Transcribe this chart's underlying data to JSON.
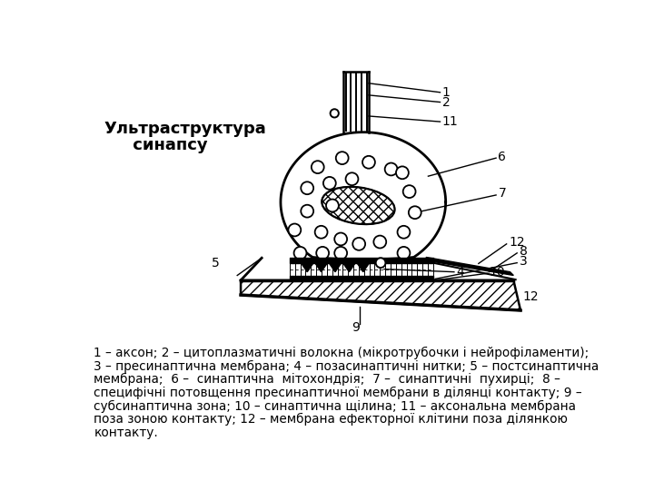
{
  "bg_color": "#ffffff",
  "title_line1": "Ультраструктура",
  "title_line2": "     синапсу",
  "caption": "1 – аксон; 2 – цитоплазматичні волокна (мікротрубочки і нейрофіламенти);\n3 – пресинаптична мембрана; 4 – позасинаптичні нитки; 5 – постсинаптична\nмембрана;  6 –  синаптична  мітохондрія;  7 –  синаптичні  пухирці;  8 –\nспецифічні потовщення пресинаптичної мембрани в ділянці контакту; 9 –\nсубсинаптична зона; 10 – синаптична щілина; 11 – аксональна мембрана\nпоза зоною контакту; 12 – мембрана ефекторної клітини поза ділянкою\nконтакту."
}
